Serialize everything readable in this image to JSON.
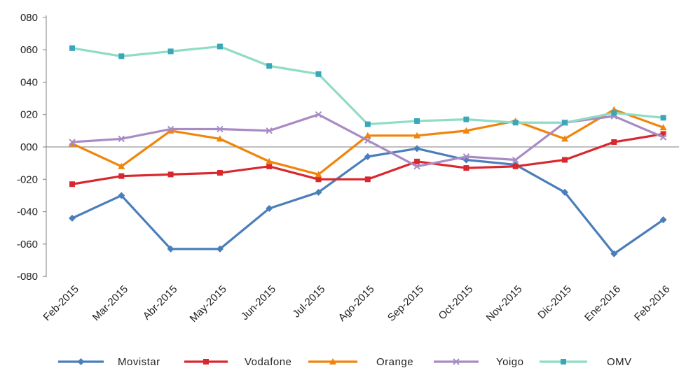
{
  "chart_data": {
    "type": "line",
    "categories": [
      "Feb-2015",
      "Mar-2015",
      "Abr-2015",
      "May-2015",
      "Jun-2015",
      "Jul-2015",
      "Ago-2015",
      "Sep-2015",
      "Oct-2015",
      "Nov-2015",
      "Dic-2015",
      "Ene-2016",
      "Feb-2016"
    ],
    "yticks": [
      "080",
      "060",
      "040",
      "020",
      "000",
      "-020",
      "-040",
      "-060",
      "-080"
    ],
    "ylim": [
      -80,
      80
    ],
    "series": [
      {
        "name": "Movistar",
        "color": "#4a7ebb",
        "marker": "diamond",
        "values": [
          -44,
          -30,
          -63,
          -63,
          -38,
          -28,
          -6,
          -1,
          -8,
          -11,
          -28,
          -66,
          -45
        ]
      },
      {
        "name": "Vodafone",
        "color": "#d9272e",
        "marker": "square",
        "values": [
          -23,
          -18,
          -17,
          -16,
          -12,
          -20,
          -20,
          -9,
          -13,
          -12,
          -8,
          3,
          8
        ]
      },
      {
        "name": "Orange",
        "color": "#f0850a",
        "marker": "triangle",
        "values": [
          2,
          -12,
          10,
          5,
          -9,
          -17,
          7,
          7,
          10,
          16,
          5,
          23,
          12
        ]
      },
      {
        "name": "Yoigo",
        "color": "#a98bc4",
        "marker": "x",
        "values": [
          3,
          5,
          11,
          11,
          10,
          20,
          4,
          -12,
          -6,
          -8,
          15,
          19,
          6
        ]
      },
      {
        "name": "OMV",
        "color": "#8fdcc6",
        "marker": "square",
        "marker_color": "#3aa6b9",
        "values": [
          61,
          56,
          59,
          62,
          50,
          45,
          14,
          16,
          17,
          15,
          15,
          21,
          18
        ]
      }
    ]
  }
}
